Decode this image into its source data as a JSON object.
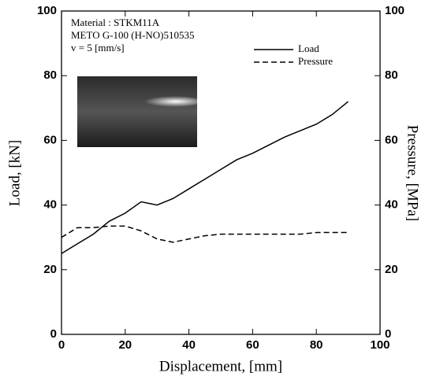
{
  "chart_data": {
    "type": "line",
    "annotations": [
      "Material : STKM11A",
      "METO G-100 (H-NO)510535",
      "v = 5 [mm/s]"
    ],
    "x_label": "Displacement, [mm]",
    "y_label": "Load, [kN]",
    "y2_label": "Pressure, [MPa]",
    "x": [
      0,
      5,
      10,
      15,
      20,
      25,
      30,
      35,
      40,
      45,
      50,
      55,
      60,
      65,
      70,
      75,
      80,
      85,
      90
    ],
    "series": [
      {
        "name": "Load",
        "color": "#000000",
        "style": "solid",
        "axis": "y",
        "values": [
          25,
          28,
          31,
          35,
          37.5,
          41,
          40,
          42,
          45,
          48,
          51,
          54,
          56,
          58.5,
          61,
          63,
          65,
          68,
          72
        ]
      },
      {
        "name": "Pressure",
        "color": "#000000",
        "style": "dashed",
        "axis": "y2",
        "values": [
          30,
          33,
          33,
          33.5,
          33.5,
          32,
          29.5,
          28.5,
          29.5,
          30.5,
          31,
          31,
          31,
          31,
          31,
          31,
          31.5,
          31.5,
          31.5
        ]
      }
    ],
    "xlim": [
      0,
      100
    ],
    "xticks": [
      0,
      20,
      40,
      60,
      80,
      100
    ],
    "ylim": [
      0,
      100
    ],
    "yticks": [
      0,
      20,
      40,
      60,
      80,
      100
    ],
    "y2lim": [
      0,
      100
    ],
    "y2ticks": [
      0,
      20,
      40,
      60,
      80,
      100
    ],
    "legend": "upper-right",
    "grid": false
  }
}
